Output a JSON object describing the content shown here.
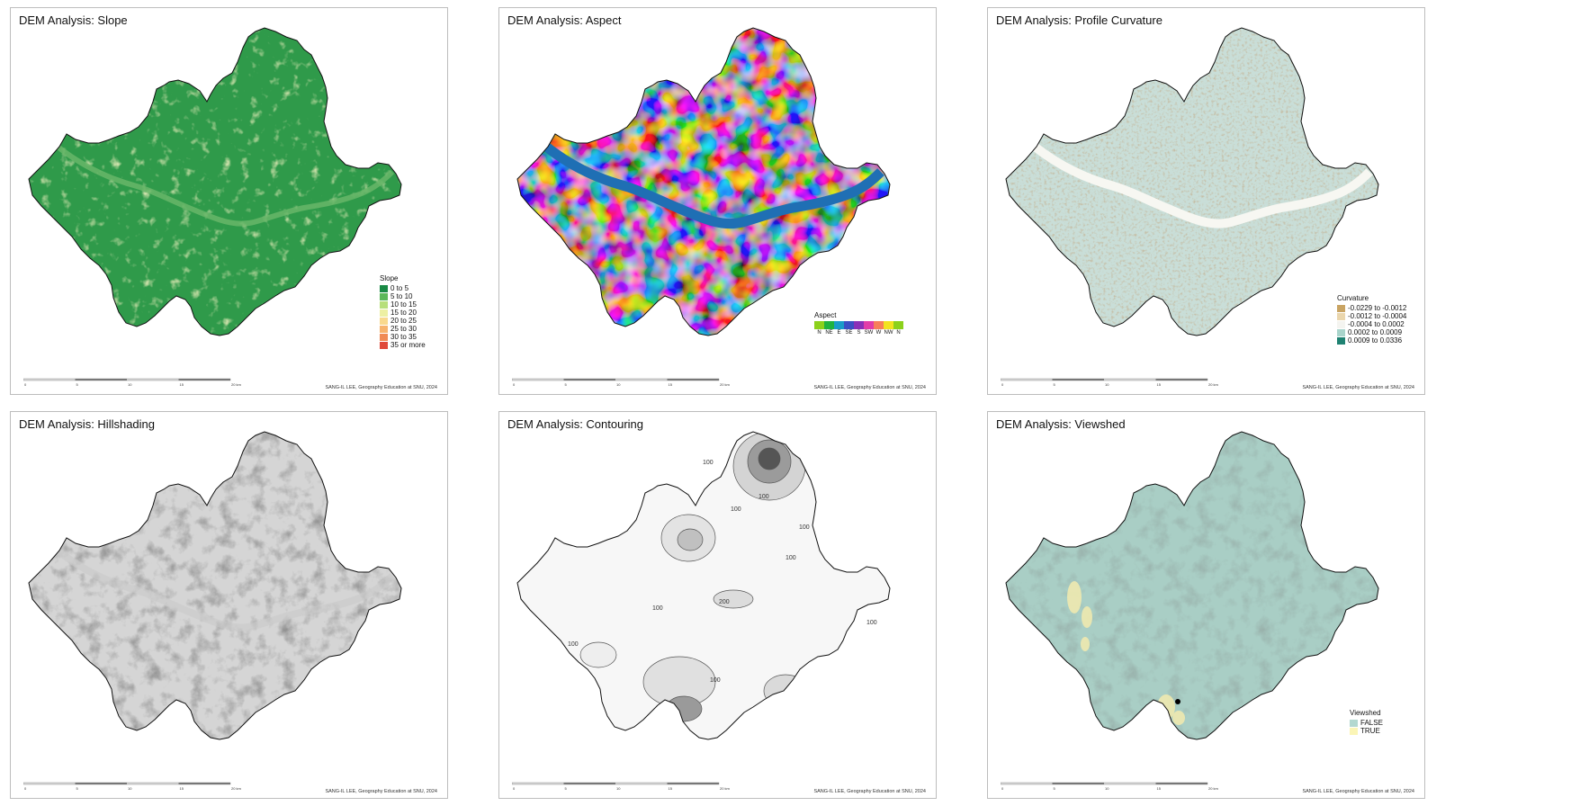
{
  "credit": "SANG-IL LEE, Geography Education at SNU, 2024",
  "panels": [
    {
      "id": "slope",
      "title": "DEM Analysis: Slope",
      "base_color": "#2f9a4a",
      "legend": {
        "title": "Slope",
        "items": [
          {
            "label": "0 to 5",
            "color": "#1a8a45"
          },
          {
            "label": "5 to 10",
            "color": "#5cb85a"
          },
          {
            "label": "10 to 15",
            "color": "#b7df7a"
          },
          {
            "label": "15 to 20",
            "color": "#edf0a3"
          },
          {
            "label": "20 to 25",
            "color": "#f9d98e"
          },
          {
            "label": "25 to 30",
            "color": "#f7b36d"
          },
          {
            "label": "30 to 35",
            "color": "#f08a55"
          },
          {
            "label": "35 or more",
            "color": "#e04a3a"
          }
        ]
      }
    },
    {
      "id": "aspect",
      "title": "DEM Analysis: Aspect",
      "base_color": "#d98ad0",
      "legend": {
        "title": "Aspect",
        "items": [
          {
            "label": "N",
            "color": "#8cd11b"
          },
          {
            "label": "NE",
            "color": "#1fb33f"
          },
          {
            "label": "E",
            "color": "#1a9cc9"
          },
          {
            "label": "SE",
            "color": "#3b4fc4"
          },
          {
            "label": "S",
            "color": "#8a2fb8"
          },
          {
            "label": "SW",
            "color": "#e23ca9"
          },
          {
            "label": "W",
            "color": "#f77f5a"
          },
          {
            "label": "NW",
            "color": "#f2e31f"
          },
          {
            "label": "N",
            "color": "#8cd11b"
          }
        ]
      }
    },
    {
      "id": "curvature",
      "title": "DEM Analysis: Profile Curvature",
      "base_color": "#c9ded8",
      "legend": {
        "title": "Curvature",
        "items": [
          {
            "label": "-0.0229 to -0.0012",
            "color": "#c9a463"
          },
          {
            "label": "-0.0012 to -0.0004",
            "color": "#ead6ad"
          },
          {
            "label": "-0.0004 to 0.0002",
            "color": "#f4f4f0"
          },
          {
            "label": "0.0002 to 0.0009",
            "color": "#a9d4cb"
          },
          {
            "label": "0.0009 to 0.0336",
            "color": "#1f8272"
          }
        ]
      }
    },
    {
      "id": "hillshade",
      "title": "DEM Analysis: Hillshading",
      "base_color": "#d5d5d5"
    },
    {
      "id": "contour",
      "title": "DEM Analysis: Contouring",
      "base_color": "#f7f7f7",
      "contour_labels": [
        "100",
        "100",
        "100",
        "100",
        "100",
        "200",
        "100",
        "100",
        "100",
        "100"
      ]
    },
    {
      "id": "viewshed",
      "title": "DEM Analysis: Viewshed",
      "base_color": "#a9cec5",
      "legend": {
        "title": "Viewshed",
        "items": [
          {
            "label": "FALSE",
            "color": "#b3d8d0"
          },
          {
            "label": "TRUE",
            "color": "#fbf5b6"
          }
        ]
      }
    }
  ],
  "scalebar": {
    "labels": [
      "0",
      "5",
      "10",
      "15",
      "20 km"
    ]
  }
}
